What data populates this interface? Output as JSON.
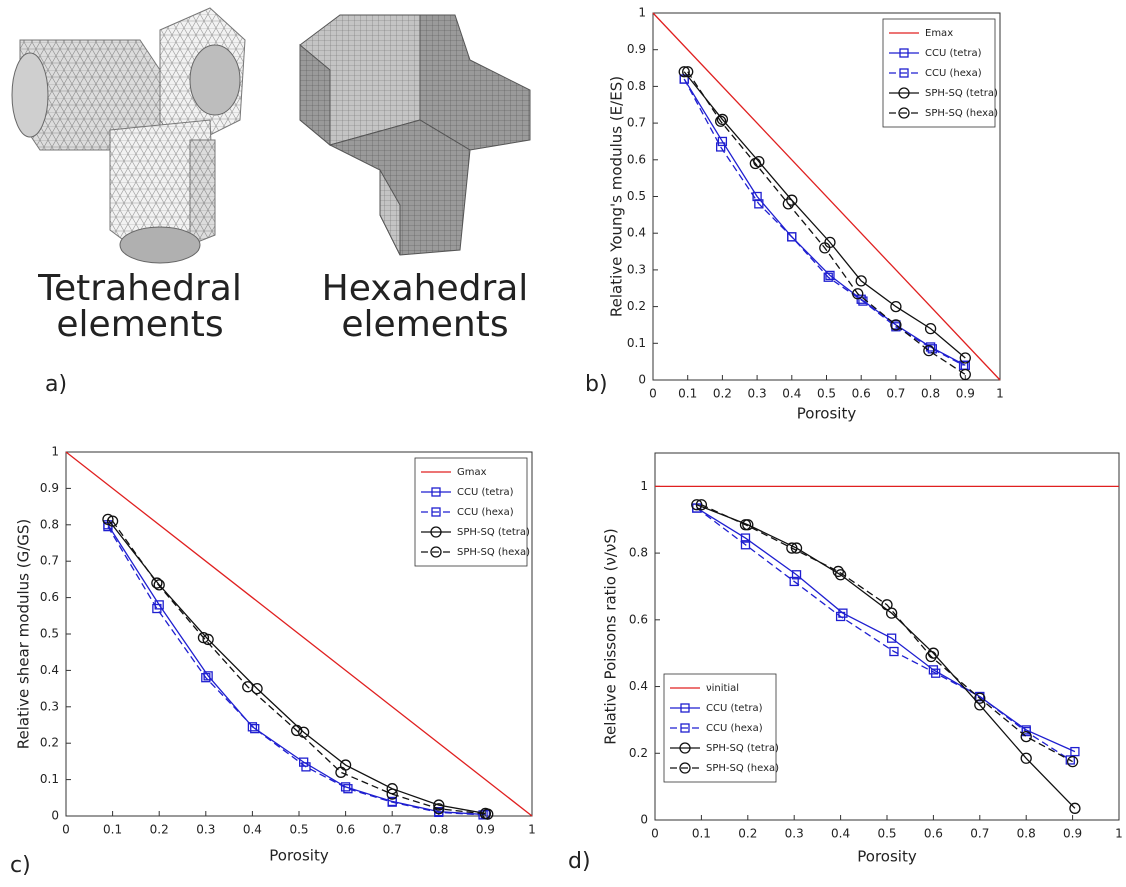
{
  "panel_labels": [
    "a)",
    "b)",
    "c)",
    "d)"
  ],
  "mesh_labels": [
    [
      "Tetrahedral",
      "elements"
    ],
    [
      "Hexahedral",
      "elements"
    ]
  ],
  "chart_data": [
    {
      "type": "line",
      "x_label": "Porosity",
      "y_label": "Relative Young's modulus (E/ES)",
      "xlim": [
        0,
        1
      ],
      "ylim": [
        0,
        1
      ],
      "xticks": [
        0,
        0.1,
        0.2,
        0.3,
        0.4,
        0.5,
        0.6,
        0.7,
        0.8,
        0.9,
        1
      ],
      "yticks": [
        0,
        0.1,
        0.2,
        0.3,
        0.4,
        0.5,
        0.6,
        0.7,
        0.8,
        0.9,
        1
      ],
      "legend": "upper right",
      "series": [
        {
          "name": "Emax",
          "color": "#e02020",
          "linestyle": "solid",
          "marker": "none",
          "x": [
            0,
            1
          ],
          "values": [
            1,
            0
          ]
        },
        {
          "name": "CCU (tetra)",
          "color": "#1f1fd0",
          "linestyle": "solid",
          "marker": "square",
          "x": [
            0.09,
            0.2,
            0.3,
            0.4,
            0.51,
            0.6,
            0.7,
            0.8,
            0.9
          ],
          "values": [
            0.82,
            0.65,
            0.5,
            0.39,
            0.285,
            0.22,
            0.15,
            0.09,
            0.04
          ]
        },
        {
          "name": "CCU (hexa)",
          "color": "#1f1fd0",
          "linestyle": "dashed",
          "marker": "square",
          "x": [
            0.09,
            0.195,
            0.305,
            0.4,
            0.505,
            0.605,
            0.7,
            0.805,
            0.895
          ],
          "values": [
            0.82,
            0.635,
            0.48,
            0.39,
            0.28,
            0.215,
            0.145,
            0.085,
            0.04
          ]
        },
        {
          "name": "SPH-SQ (tetra)",
          "color": "#111111",
          "linestyle": "solid",
          "marker": "circle",
          "x": [
            0.09,
            0.2,
            0.305,
            0.4,
            0.51,
            0.6,
            0.7,
            0.8,
            0.9
          ],
          "values": [
            0.84,
            0.71,
            0.595,
            0.49,
            0.375,
            0.27,
            0.2,
            0.14,
            0.06
          ]
        },
        {
          "name": "SPH-SQ (hexa)",
          "color": "#111111",
          "linestyle": "dashed",
          "marker": "circle",
          "x": [
            0.1,
            0.195,
            0.295,
            0.39,
            0.495,
            0.59,
            0.7,
            0.795,
            0.9
          ],
          "values": [
            0.84,
            0.705,
            0.59,
            0.48,
            0.36,
            0.235,
            0.15,
            0.08,
            0.015
          ]
        }
      ]
    },
    {
      "type": "line",
      "x_label": "Porosity",
      "y_label": "Relative shear modulus (G/GS)",
      "xlim": [
        0,
        1
      ],
      "ylim": [
        0,
        1
      ],
      "xticks": [
        0,
        0.1,
        0.2,
        0.3,
        0.4,
        0.5,
        0.6,
        0.7,
        0.8,
        0.9,
        1
      ],
      "yticks": [
        0,
        0.1,
        0.2,
        0.3,
        0.4,
        0.5,
        0.6,
        0.7,
        0.8,
        0.9,
        1
      ],
      "legend": "upper right",
      "series": [
        {
          "name": "Gmax",
          "color": "#e02020",
          "linestyle": "solid",
          "marker": "none",
          "x": [
            0,
            1
          ],
          "values": [
            1,
            0
          ]
        },
        {
          "name": "CCU (tetra)",
          "color": "#1f1fd0",
          "linestyle": "solid",
          "marker": "square",
          "x": [
            0.09,
            0.2,
            0.305,
            0.4,
            0.51,
            0.6,
            0.7,
            0.8,
            0.9
          ],
          "values": [
            0.8,
            0.58,
            0.385,
            0.245,
            0.148,
            0.08,
            0.04,
            0.012,
            0.004
          ]
        },
        {
          "name": "CCU (hexa)",
          "color": "#1f1fd0",
          "linestyle": "dashed",
          "marker": "square",
          "x": [
            0.09,
            0.195,
            0.3,
            0.405,
            0.515,
            0.605,
            0.7,
            0.8,
            0.895
          ],
          "values": [
            0.795,
            0.57,
            0.38,
            0.24,
            0.135,
            0.075,
            0.038,
            0.01,
            0.003
          ]
        },
        {
          "name": "SPH-SQ (tetra)",
          "color": "#111111",
          "linestyle": "solid",
          "marker": "circle",
          "x": [
            0.09,
            0.2,
            0.305,
            0.41,
            0.51,
            0.6,
            0.7,
            0.8,
            0.9
          ],
          "values": [
            0.815,
            0.635,
            0.485,
            0.35,
            0.23,
            0.14,
            0.075,
            0.03,
            0.007
          ]
        },
        {
          "name": "SPH-SQ (hexa)",
          "color": "#111111",
          "linestyle": "dashed",
          "marker": "circle",
          "x": [
            0.1,
            0.195,
            0.295,
            0.39,
            0.495,
            0.59,
            0.7,
            0.8,
            0.905
          ],
          "values": [
            0.81,
            0.64,
            0.49,
            0.355,
            0.235,
            0.12,
            0.06,
            0.02,
            0.005
          ]
        }
      ]
    },
    {
      "type": "line",
      "x_label": "Porosity",
      "y_label": "Relative Poissons ratio (ν/νS)",
      "xlim": [
        0,
        1
      ],
      "ylim": [
        0,
        1.1
      ],
      "xticks": [
        0,
        0.1,
        0.2,
        0.3,
        0.4,
        0.5,
        0.6,
        0.7,
        0.8,
        0.9,
        1
      ],
      "yticks": [
        0,
        0.2,
        0.4,
        0.6,
        0.8,
        1
      ],
      "legend": "lower left",
      "series": [
        {
          "name": "νinitial",
          "color": "#e02020",
          "linestyle": "solid",
          "marker": "none",
          "x": [
            0,
            1
          ],
          "values": [
            1,
            1
          ]
        },
        {
          "name": "CCU (tetra)",
          "color": "#1f1fd0",
          "linestyle": "solid",
          "marker": "square",
          "x": [
            0.09,
            0.195,
            0.305,
            0.405,
            0.51,
            0.6,
            0.7,
            0.8,
            0.905
          ],
          "values": [
            0.935,
            0.845,
            0.735,
            0.62,
            0.545,
            0.45,
            0.37,
            0.27,
            0.205
          ]
        },
        {
          "name": "CCU (hexa)",
          "color": "#1f1fd0",
          "linestyle": "dashed",
          "marker": "square",
          "x": [
            0.09,
            0.195,
            0.3,
            0.4,
            0.515,
            0.605,
            0.7,
            0.8,
            0.895
          ],
          "values": [
            0.935,
            0.825,
            0.715,
            0.61,
            0.505,
            0.44,
            0.37,
            0.265,
            0.18
          ]
        },
        {
          "name": "SPH-SQ (tetra)",
          "color": "#111111",
          "linestyle": "solid",
          "marker": "circle",
          "x": [
            0.09,
            0.2,
            0.305,
            0.4,
            0.51,
            0.6,
            0.7,
            0.8,
            0.905
          ],
          "values": [
            0.945,
            0.885,
            0.815,
            0.735,
            0.62,
            0.5,
            0.345,
            0.185,
            0.035
          ]
        },
        {
          "name": "SPH-SQ (hexa)",
          "color": "#111111",
          "linestyle": "dashed",
          "marker": "circle",
          "x": [
            0.1,
            0.195,
            0.295,
            0.395,
            0.5,
            0.595,
            0.7,
            0.8,
            0.9
          ],
          "values": [
            0.945,
            0.885,
            0.815,
            0.745,
            0.645,
            0.49,
            0.365,
            0.25,
            0.175
          ]
        }
      ]
    }
  ]
}
